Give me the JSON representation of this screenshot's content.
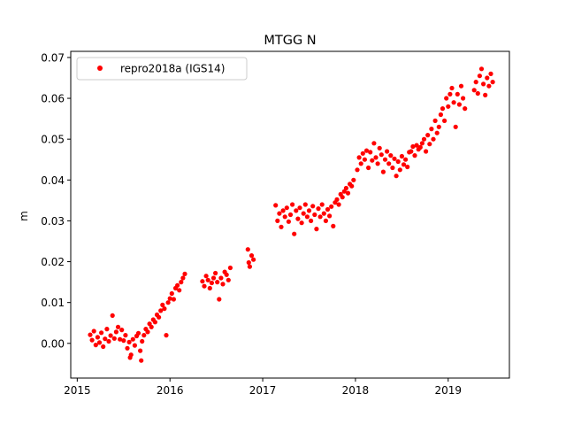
{
  "chart_data": {
    "type": "scatter",
    "title": "MTGG N",
    "xlabel": "",
    "ylabel": "m",
    "xlim": [
      2014.93,
      2019.66
    ],
    "ylim": [
      -0.0085,
      0.0715
    ],
    "x_ticks": [
      2015,
      2016,
      2017,
      2018,
      2019
    ],
    "x_tick_labels": [
      "2015",
      "2016",
      "2017",
      "2018",
      "2019"
    ],
    "y_ticks": [
      0.0,
      0.01,
      0.02,
      0.03,
      0.04,
      0.05,
      0.06,
      0.07
    ],
    "y_tick_labels": [
      "0.00",
      "0.01",
      "0.02",
      "0.03",
      "0.04",
      "0.05",
      "0.06",
      "0.07"
    ],
    "grid": false,
    "legend": {
      "position": "top-left",
      "entries": [
        "repro2018a (IGS14)"
      ]
    },
    "series": [
      {
        "name": "repro2018a (IGS14)",
        "color": "#ff0000",
        "marker": "circle",
        "points": [
          [
            2015.14,
            0.0021
          ],
          [
            2015.16,
            0.0008
          ],
          [
            2015.18,
            0.003
          ],
          [
            2015.2,
            -0.0004
          ],
          [
            2015.22,
            0.0015
          ],
          [
            2015.24,
            0.0002
          ],
          [
            2015.26,
            0.0026
          ],
          [
            2015.28,
            -0.0008
          ],
          [
            2015.3,
            0.0011
          ],
          [
            2015.32,
            0.0035
          ],
          [
            2015.34,
            0.0005
          ],
          [
            2015.36,
            0.0019
          ],
          [
            2015.38,
            0.0068
          ],
          [
            2015.4,
            0.0012
          ],
          [
            2015.42,
            0.0028
          ],
          [
            2015.44,
            0.004
          ],
          [
            2015.46,
            0.001
          ],
          [
            2015.48,
            0.0033
          ],
          [
            2015.5,
            0.0007
          ],
          [
            2015.52,
            0.002
          ],
          [
            2015.54,
            -0.0012
          ],
          [
            2015.56,
            0.0003
          ],
          [
            2015.57,
            -0.0035
          ],
          [
            2015.58,
            -0.0028
          ],
          [
            2015.6,
            0.001
          ],
          [
            2015.62,
            -0.0005
          ],
          [
            2015.64,
            0.0018
          ],
          [
            2015.66,
            0.0025
          ],
          [
            2015.68,
            -0.0018
          ],
          [
            2015.69,
            -0.0042
          ],
          [
            2015.7,
            0.0005
          ],
          [
            2015.72,
            0.002
          ],
          [
            2015.74,
            0.0035
          ],
          [
            2015.76,
            0.0028
          ],
          [
            2015.78,
            0.0048
          ],
          [
            2015.8,
            0.004
          ],
          [
            2015.82,
            0.0058
          ],
          [
            2015.84,
            0.0052
          ],
          [
            2015.86,
            0.007
          ],
          [
            2015.88,
            0.0064
          ],
          [
            2015.9,
            0.008
          ],
          [
            2015.92,
            0.0094
          ],
          [
            2015.94,
            0.0085
          ],
          [
            2015.96,
            0.002
          ],
          [
            2015.98,
            0.01
          ],
          [
            2016.0,
            0.011
          ],
          [
            2016.02,
            0.0122
          ],
          [
            2016.04,
            0.0108
          ],
          [
            2016.06,
            0.0135
          ],
          [
            2016.08,
            0.0142
          ],
          [
            2016.1,
            0.013
          ],
          [
            2016.12,
            0.015
          ],
          [
            2016.14,
            0.016
          ],
          [
            2016.16,
            0.017
          ],
          [
            2016.35,
            0.0152
          ],
          [
            2016.37,
            0.014
          ],
          [
            2016.39,
            0.0165
          ],
          [
            2016.41,
            0.0155
          ],
          [
            2016.43,
            0.0135
          ],
          [
            2016.45,
            0.0148
          ],
          [
            2016.47,
            0.016
          ],
          [
            2016.49,
            0.0172
          ],
          [
            2016.51,
            0.015
          ],
          [
            2016.53,
            0.0108
          ],
          [
            2016.55,
            0.016
          ],
          [
            2016.57,
            0.0145
          ],
          [
            2016.59,
            0.0175
          ],
          [
            2016.61,
            0.0168
          ],
          [
            2016.63,
            0.0155
          ],
          [
            2016.65,
            0.0185
          ],
          [
            2016.84,
            0.023
          ],
          [
            2016.85,
            0.0198
          ],
          [
            2016.86,
            0.0188
          ],
          [
            2016.88,
            0.0215
          ],
          [
            2016.9,
            0.0205
          ],
          [
            2017.14,
            0.0338
          ],
          [
            2017.16,
            0.03
          ],
          [
            2017.18,
            0.0318
          ],
          [
            2017.2,
            0.0285
          ],
          [
            2017.22,
            0.0325
          ],
          [
            2017.24,
            0.031
          ],
          [
            2017.26,
            0.0332
          ],
          [
            2017.28,
            0.0298
          ],
          [
            2017.3,
            0.0315
          ],
          [
            2017.32,
            0.034
          ],
          [
            2017.34,
            0.0268
          ],
          [
            2017.36,
            0.0325
          ],
          [
            2017.38,
            0.0305
          ],
          [
            2017.4,
            0.0332
          ],
          [
            2017.42,
            0.0295
          ],
          [
            2017.44,
            0.0318
          ],
          [
            2017.46,
            0.034
          ],
          [
            2017.48,
            0.031
          ],
          [
            2017.5,
            0.0325
          ],
          [
            2017.52,
            0.03
          ],
          [
            2017.54,
            0.0336
          ],
          [
            2017.56,
            0.0315
          ],
          [
            2017.58,
            0.028
          ],
          [
            2017.6,
            0.033
          ],
          [
            2017.62,
            0.031
          ],
          [
            2017.64,
            0.034
          ],
          [
            2017.66,
            0.0318
          ],
          [
            2017.68,
            0.03
          ],
          [
            2017.7,
            0.0328
          ],
          [
            2017.72,
            0.0312
          ],
          [
            2017.74,
            0.0335
          ],
          [
            2017.76,
            0.0287
          ],
          [
            2017.78,
            0.0345
          ],
          [
            2017.8,
            0.0352
          ],
          [
            2017.82,
            0.034
          ],
          [
            2017.84,
            0.0365
          ],
          [
            2017.86,
            0.0358
          ],
          [
            2017.88,
            0.0372
          ],
          [
            2017.9,
            0.038
          ],
          [
            2017.92,
            0.0368
          ],
          [
            2017.94,
            0.039
          ],
          [
            2017.96,
            0.0385
          ],
          [
            2017.98,
            0.04
          ],
          [
            2018.02,
            0.0425
          ],
          [
            2018.04,
            0.0455
          ],
          [
            2018.06,
            0.044
          ],
          [
            2018.08,
            0.0465
          ],
          [
            2018.1,
            0.045
          ],
          [
            2018.12,
            0.0472
          ],
          [
            2018.14,
            0.043
          ],
          [
            2018.16,
            0.0468
          ],
          [
            2018.18,
            0.0448
          ],
          [
            2018.2,
            0.049
          ],
          [
            2018.22,
            0.0455
          ],
          [
            2018.24,
            0.044
          ],
          [
            2018.26,
            0.0478
          ],
          [
            2018.28,
            0.0462
          ],
          [
            2018.3,
            0.042
          ],
          [
            2018.32,
            0.045
          ],
          [
            2018.34,
            0.047
          ],
          [
            2018.36,
            0.044
          ],
          [
            2018.38,
            0.046
          ],
          [
            2018.4,
            0.043
          ],
          [
            2018.42,
            0.0452
          ],
          [
            2018.44,
            0.041
          ],
          [
            2018.46,
            0.0445
          ],
          [
            2018.48,
            0.0425
          ],
          [
            2018.5,
            0.0458
          ],
          [
            2018.52,
            0.0438
          ],
          [
            2018.54,
            0.045
          ],
          [
            2018.56,
            0.0432
          ],
          [
            2018.58,
            0.0468
          ],
          [
            2018.6,
            0.047
          ],
          [
            2018.62,
            0.0482
          ],
          [
            2018.64,
            0.046
          ],
          [
            2018.66,
            0.0485
          ],
          [
            2018.68,
            0.0475
          ],
          [
            2018.7,
            0.048
          ],
          [
            2018.72,
            0.049
          ],
          [
            2018.74,
            0.05
          ],
          [
            2018.76,
            0.047
          ],
          [
            2018.78,
            0.051
          ],
          [
            2018.8,
            0.0488
          ],
          [
            2018.82,
            0.0525
          ],
          [
            2018.84,
            0.05
          ],
          [
            2018.86,
            0.0545
          ],
          [
            2018.88,
            0.0515
          ],
          [
            2018.9,
            0.053
          ],
          [
            2018.92,
            0.056
          ],
          [
            2018.94,
            0.0575
          ],
          [
            2018.96,
            0.0545
          ],
          [
            2018.98,
            0.06
          ],
          [
            2019.0,
            0.058
          ],
          [
            2019.02,
            0.061
          ],
          [
            2019.04,
            0.0625
          ],
          [
            2019.06,
            0.059
          ],
          [
            2019.08,
            0.053
          ],
          [
            2019.1,
            0.061
          ],
          [
            2019.12,
            0.0585
          ],
          [
            2019.14,
            0.063
          ],
          [
            2019.16,
            0.06
          ],
          [
            2019.18,
            0.0575
          ],
          [
            2019.28,
            0.062
          ],
          [
            2019.3,
            0.064
          ],
          [
            2019.32,
            0.0612
          ],
          [
            2019.34,
            0.0655
          ],
          [
            2019.36,
            0.0672
          ],
          [
            2019.38,
            0.0635
          ],
          [
            2019.4,
            0.0608
          ],
          [
            2019.42,
            0.065
          ],
          [
            2019.44,
            0.063
          ],
          [
            2019.46,
            0.066
          ],
          [
            2019.48,
            0.064
          ]
        ]
      }
    ]
  }
}
